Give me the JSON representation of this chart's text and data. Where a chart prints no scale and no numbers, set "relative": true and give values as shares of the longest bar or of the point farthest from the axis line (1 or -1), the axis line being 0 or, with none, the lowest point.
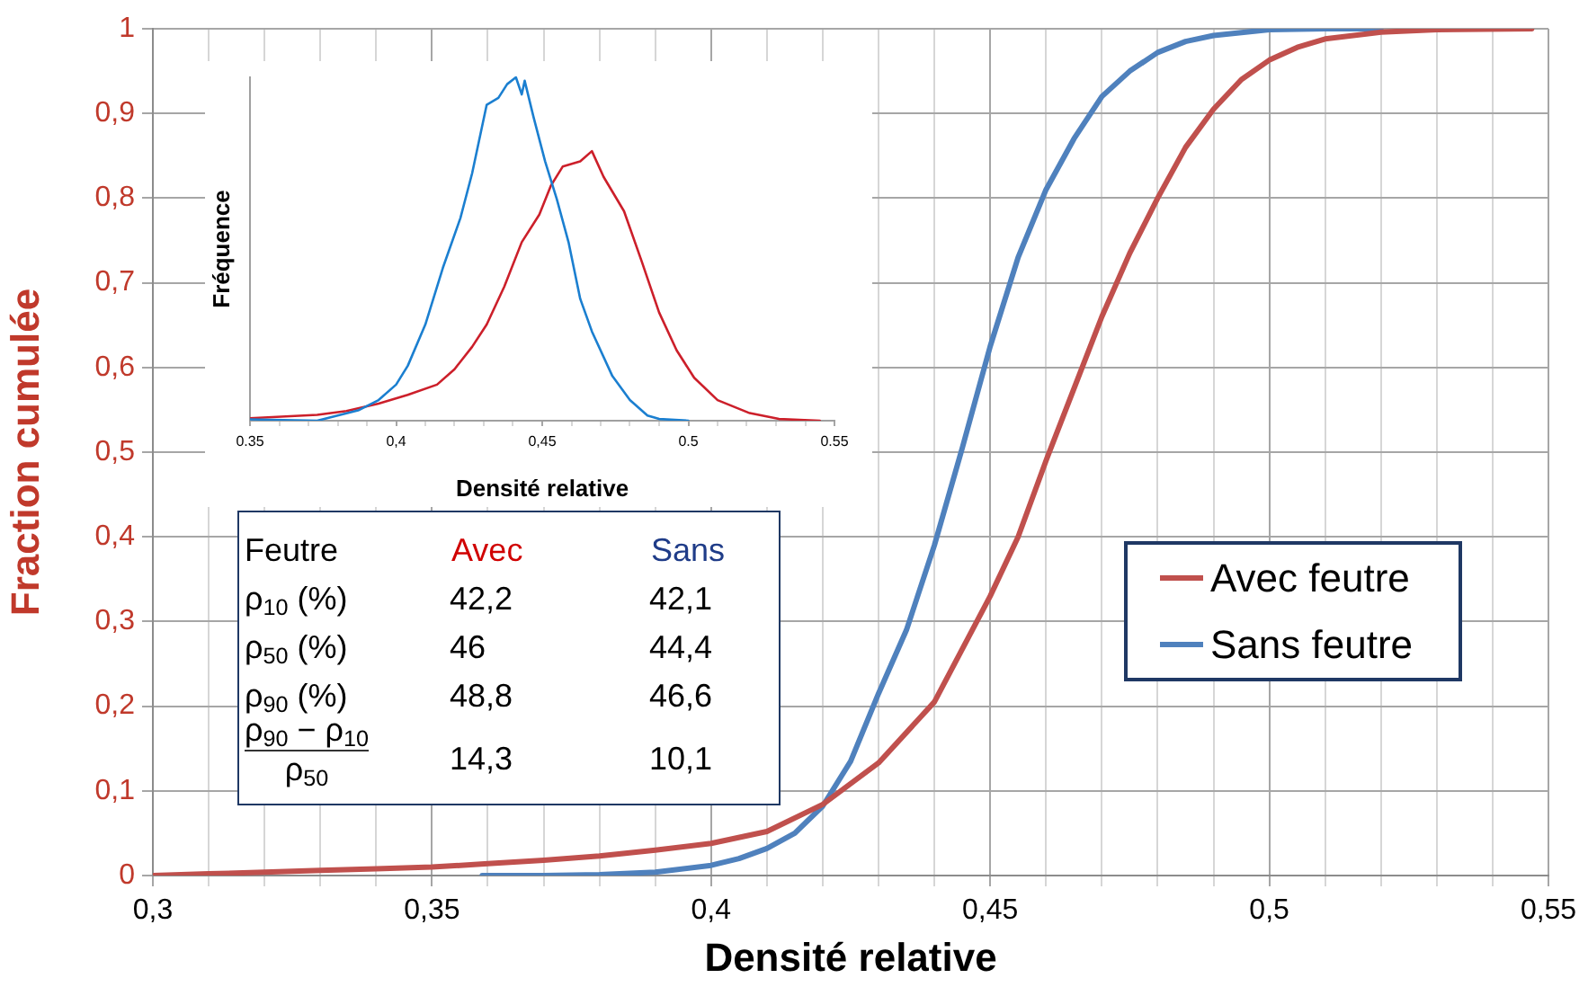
{
  "chart_data": [
    {
      "type": "line",
      "xlabel": "Densité relative",
      "ylabel": "Fraction cumulée",
      "xlim": [
        0.3,
        0.55
      ],
      "xticks": [
        {
          "value": 0.3,
          "label": "0,3"
        },
        {
          "value": 0.31,
          "label": null
        },
        {
          "value": 0.32,
          "label": null
        },
        {
          "value": 0.33,
          "label": null
        },
        {
          "value": 0.34,
          "label": null
        },
        {
          "value": 0.35,
          "label": "0,35"
        },
        {
          "value": 0.36,
          "label": null
        },
        {
          "value": 0.37,
          "label": null
        },
        {
          "value": 0.38,
          "label": null
        },
        {
          "value": 0.39,
          "label": null
        },
        {
          "value": 0.4,
          "label": "0,4"
        },
        {
          "value": 0.41,
          "label": null
        },
        {
          "value": 0.42,
          "label": null
        },
        {
          "value": 0.43,
          "label": null
        },
        {
          "value": 0.44,
          "label": null
        },
        {
          "value": 0.45,
          "label": "0,45"
        },
        {
          "value": 0.46,
          "label": null
        },
        {
          "value": 0.47,
          "label": null
        },
        {
          "value": 0.48,
          "label": null
        },
        {
          "value": 0.49,
          "label": null
        },
        {
          "value": 0.5,
          "label": "0,5"
        },
        {
          "value": 0.51,
          "label": null
        },
        {
          "value": 0.52,
          "label": null
        },
        {
          "value": 0.53,
          "label": null
        },
        {
          "value": 0.54,
          "label": null
        },
        {
          "value": 0.55,
          "label": "0,55"
        }
      ],
      "ylim": [
        0,
        1
      ],
      "yticks": [
        0,
        {
          "value": 0.1,
          "label": "0,1"
        },
        {
          "value": 0.2,
          "label": "0,2"
        },
        {
          "value": 0.3,
          "label": "0,3"
        },
        {
          "value": 0.4,
          "label": "0,4"
        },
        {
          "value": 0.5,
          "label": "0,5"
        },
        {
          "value": 0.6,
          "label": "0,6"
        },
        {
          "value": 0.7,
          "label": "0,7"
        },
        {
          "value": 0.8,
          "label": "0,8"
        },
        {
          "value": 0.9,
          "label": "0,9"
        },
        1
      ],
      "grid": true,
      "legend": "right",
      "series": [
        {
          "name": "Avec feutre",
          "color": "#c0504d",
          "x": [
            0.3,
            0.31,
            0.32,
            0.33,
            0.34,
            0.35,
            0.36,
            0.37,
            0.38,
            0.39,
            0.4,
            0.41,
            0.42,
            0.43,
            0.44,
            0.45,
            0.455,
            0.46,
            0.465,
            0.47,
            0.475,
            0.48,
            0.485,
            0.49,
            0.495,
            0.5,
            0.505,
            0.51,
            0.52,
            0.53,
            0.547
          ],
          "values": [
            0,
            0.002,
            0.004,
            0.006,
            0.008,
            0.01,
            0.014,
            0.018,
            0.023,
            0.03,
            0.038,
            0.052,
            0.084,
            0.133,
            0.205,
            0.33,
            0.4,
            0.49,
            0.575,
            0.66,
            0.735,
            0.8,
            0.86,
            0.905,
            0.94,
            0.963,
            0.978,
            0.988,
            0.996,
            0.999,
            1
          ]
        },
        {
          "name": "Sans feutre",
          "color": "#4f81bd",
          "x": [
            0.359,
            0.37,
            0.38,
            0.39,
            0.4,
            0.405,
            0.41,
            0.415,
            0.42,
            0.425,
            0.43,
            0.435,
            0.44,
            0.445,
            0.45,
            0.455,
            0.46,
            0.465,
            0.47,
            0.475,
            0.48,
            0.485,
            0.49,
            0.5,
            0.51,
            0.52
          ],
          "values": [
            0,
            0,
            0.001,
            0.004,
            0.012,
            0.02,
            0.032,
            0.05,
            0.082,
            0.135,
            0.215,
            0.29,
            0.39,
            0.505,
            0.625,
            0.73,
            0.81,
            0.87,
            0.92,
            0.95,
            0.972,
            0.985,
            0.992,
            0.999,
            1,
            1
          ]
        }
      ]
    },
    {
      "type": "line",
      "relative": true,
      "xlabel": "Densité relative",
      "ylabel": "Fréquence",
      "xlim": [
        0.35,
        0.55
      ],
      "xticks": [
        0.35,
        {
          "value": 0.36,
          "label": null
        },
        {
          "value": 0.37,
          "label": null
        },
        {
          "value": 0.38,
          "label": null
        },
        {
          "value": 0.39,
          "label": null
        },
        {
          "value": 0.4,
          "label": "0,4"
        },
        {
          "value": 0.41,
          "label": null
        },
        {
          "value": 0.42,
          "label": null
        },
        {
          "value": 0.43,
          "label": null
        },
        {
          "value": 0.44,
          "label": null
        },
        {
          "value": 0.45,
          "label": "0,45"
        },
        {
          "value": 0.46,
          "label": null
        },
        {
          "value": 0.47,
          "label": null
        },
        {
          "value": 0.48,
          "label": null
        },
        {
          "value": 0.49,
          "label": null
        },
        0.5,
        {
          "value": 0.51,
          "label": null
        },
        {
          "value": 0.52,
          "label": null
        },
        {
          "value": 0.53,
          "label": null
        },
        {
          "value": 0.54,
          "label": null
        },
        0.55
      ],
      "series": [
        {
          "color": "#1b7fd0",
          "x": [
            0.35,
            0.373,
            0.387,
            0.394,
            0.4,
            0.404,
            0.41,
            0.416,
            0.422,
            0.426,
            0.431,
            0.435,
            0.438,
            0.441,
            0.443,
            0.444,
            0.447,
            0.451,
            0.455,
            0.459,
            0.463,
            0.467,
            0.474,
            0.48,
            0.486,
            0.49,
            0.5
          ],
          "values": [
            0.004,
            0,
            0.03,
            0.06,
            0.105,
            0.16,
            0.28,
            0.445,
            0.59,
            0.72,
            0.92,
            0.94,
            0.98,
            1,
            0.95,
            0.99,
            0.885,
            0.755,
            0.645,
            0.52,
            0.355,
            0.26,
            0.13,
            0.06,
            0.015,
            0.005,
            0
          ]
        },
        {
          "color": "#cc1f2a",
          "x": [
            0.35,
            0.373,
            0.383,
            0.394,
            0.404,
            0.414,
            0.42,
            0.426,
            0.431,
            0.437,
            0.443,
            0.449,
            0.453,
            0.457,
            0.463,
            0.467,
            0.471,
            0.478,
            0.484,
            0.49,
            0.496,
            0.502,
            0.51,
            0.521,
            0.531,
            0.545
          ],
          "values": [
            0.007,
            0.017,
            0.028,
            0.05,
            0.075,
            0.105,
            0.15,
            0.215,
            0.28,
            0.39,
            0.52,
            0.6,
            0.685,
            0.74,
            0.755,
            0.785,
            0.71,
            0.61,
            0.465,
            0.315,
            0.205,
            0.125,
            0.06,
            0.022,
            0.005,
            0
          ]
        }
      ]
    },
    {
      "type": "other",
      "title": "Feutre",
      "categories": [
        "Avec",
        "Sans"
      ],
      "colors": [
        "#d00000",
        "#1f3c88"
      ],
      "series": [
        {
          "name": "ρ$_{10}$ (%)",
          "values": [
            42.2,
            42.1
          ],
          "value_labels": [
            "42,2",
            "42,1"
          ]
        },
        {
          "name": "ρ$_{50}$ (%)",
          "values": [
            46,
            44.4
          ],
          "value_labels": [
            "46",
            "44,4"
          ]
        },
        {
          "name": "ρ$_{90}$ (%)",
          "values": [
            48.8,
            46.6
          ],
          "value_labels": [
            "48,8",
            "46,6"
          ]
        },
        {
          "name": "ρ$_{90}$ − ρ$_{10}$\nρ$_{50}$",
          "values": [
            14.3,
            10.1
          ],
          "value_labels": [
            "14,3",
            "10,1"
          ]
        }
      ]
    }
  ]
}
